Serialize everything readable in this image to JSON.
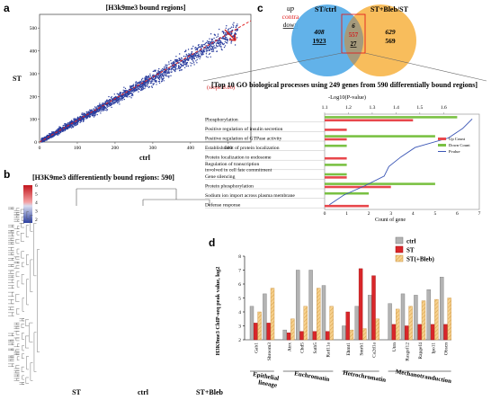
{
  "panels": {
    "a": "a",
    "b": "b",
    "c": "c",
    "d": "d"
  },
  "panel_a": {
    "title": "[H3k9me3 bound regions]",
    "xlabel": "ctrl",
    "ylabel": "ST",
    "slope_label": "(slope 0.86)",
    "x_ticks": [
      "0",
      "100",
      "200",
      "300",
      "400",
      "500"
    ],
    "y_ticks": [
      "0",
      "100",
      "200",
      "300",
      "400",
      "500"
    ],
    "colors": {
      "points": "#2a3d9e",
      "slope_line": "#e02020"
    }
  },
  "panel_b": {
    "title": "[H3K9me3 differentiently bound regions: 590]",
    "scale_ticks": [
      "6",
      "5",
      "4",
      "3",
      "2"
    ],
    "columns": [
      "ST",
      "ctrl",
      "ST+Bleb"
    ],
    "colors": {
      "high": "#d7191c",
      "mid": "#ffffff",
      "low": "#2c3fa0"
    }
  },
  "panel_c": {
    "legend": {
      "up": "up",
      "contra": "contra",
      "down": "down"
    },
    "venn": {
      "left_label": "ST/ctrl",
      "right_label": "ST+Bleb/ST",
      "left_up": "408",
      "left_down": "1923",
      "mid_up": "6",
      "mid_contra": "557",
      "mid_down": "27",
      "right_up": "629",
      "right_down": "569"
    },
    "go_title": "[Top 10 GO biological processes using 249 genes from 590 differentially bound regions]",
    "top_axis_label": "-Log10(P-value)",
    "top_ticks": [
      "1.1",
      "1.2",
      "1.3",
      "1.4",
      "1.5",
      "1.6"
    ],
    "bottom_ticks": [
      "0",
      "1",
      "2",
      "3",
      "4",
      "5",
      "6",
      "7"
    ],
    "bottom_axis_label": "Count of gene",
    "legend_items": [
      "Up Count",
      "Down Count",
      "Pvalue"
    ],
    "colors": {
      "up": "#e8474c",
      "down": "#7ac143",
      "pvalue": "#3a55b5",
      "venn_left": "#5aaee8",
      "venn_right": "#f7b240"
    }
  },
  "panel_d": {
    "ylabel": "H3K9me3 ChIP-seq peak value, log2",
    "y_ticks": [
      "8",
      "7",
      "6",
      "5",
      "4",
      "3",
      "2"
    ],
    "legend": [
      "ctrl",
      "ST",
      "ST(+Bleb)"
    ],
    "groups": [
      "Epithelial lineage",
      "Euchromatin",
      "Hetrochromatin",
      "Mechanotranduction"
    ],
    "colors": {
      "ctrl": "#b3b3b3",
      "st": "#d9262a",
      "bleb": "#f6d08c"
    }
  },
  "chart_data": [
    {
      "type": "scatter",
      "panel": "a",
      "title": "[H3k9me3 bound regions]",
      "xlabel": "ctrl",
      "ylabel": "ST",
      "xlim": [
        0,
        560
      ],
      "ylim": [
        0,
        560
      ],
      "trend_slope": 0.86,
      "note": "dense cloud of points along the diagonal"
    },
    {
      "type": "heatmap",
      "panel": "b",
      "title": "[H3K9me3 differentiently bound regions: 590]",
      "columns": [
        "ST",
        "ctrl",
        "ST+Bleb"
      ],
      "color_range": [
        2,
        6
      ]
    },
    {
      "type": "bar",
      "panel": "c",
      "title": "[Top 10 GO biological processes using 249 genes from 590 differentially bound regions]",
      "categories": [
        "Phosphorylation",
        "Positive regulation of insulin secretion",
        "Positive regulation of GTPase activity",
        "Establishment of protein localization",
        "Protein localization to endosome",
        "Regulation of transcription involved in cell fate commitment",
        "Gene silencing",
        "Protein phosphorylation",
        "Sodium ion import across plasma membrane",
        "Defense response"
      ],
      "xlabel": "Count of gene",
      "xlim": [
        0,
        7
      ],
      "series": [
        {
          "name": "Up Count",
          "values": [
            4,
            1,
            1,
            0,
            1,
            0,
            1,
            3,
            0,
            2
          ]
        },
        {
          "name": "Down Count",
          "values": [
            6,
            0,
            5,
            1,
            0,
            1,
            1,
            5,
            2,
            0
          ]
        },
        {
          "name": "Pvalue",
          "values": [
            1.72,
            1.68,
            1.62,
            1.48,
            1.42,
            1.37,
            1.35,
            1.27,
            1.18,
            1.12
          ]
        }
      ],
      "top_axis_label": "-Log10(P-value)",
      "top_xlim": [
        1.1,
        1.75
      ]
    },
    {
      "type": "bar",
      "panel": "d",
      "ylabel": "H3K9me3 ChIP-seq peak value, log2",
      "ylim": [
        2,
        8
      ],
      "categories": [
        "Gab1",
        "Shroom3",
        "Atrx",
        "Chd5",
        "Satb5",
        "Rad11a",
        "Ehmt1",
        "Smrb1",
        "Ca2d1a",
        "Utrn",
        "Rasgef12",
        "Rapgef4",
        "Ipo11",
        "Obscn"
      ],
      "category_groups": [
        [
          "Epithelial lineage",
          0,
          1
        ],
        [
          "Euchromatin",
          2,
          5
        ],
        [
          "Hetrochromatin",
          6,
          8
        ],
        [
          "Mechanotranduction",
          9,
          13
        ]
      ],
      "series": [
        {
          "name": "ctrl",
          "values": [
            4.4,
            5.3,
            2.7,
            7.0,
            7.0,
            5.9,
            3.0,
            4.4,
            5.2,
            4.6,
            5.3,
            5.2,
            5.6,
            6.5
          ]
        },
        {
          "name": "ST",
          "values": [
            3.2,
            3.2,
            2.5,
            2.6,
            2.6,
            2.6,
            4.0,
            7.1,
            6.6,
            3.1,
            3.0,
            3.1,
            3.1,
            3.1
          ]
        },
        {
          "name": "ST(+Bleb)",
          "values": [
            4.0,
            5.7,
            3.5,
            4.4,
            5.7,
            4.4,
            2.7,
            2.8,
            3.5,
            4.2,
            4.4,
            4.8,
            4.9,
            5.0
          ]
        }
      ]
    }
  ]
}
